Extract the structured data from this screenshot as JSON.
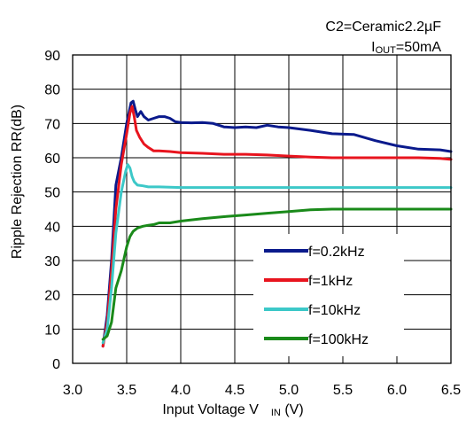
{
  "annotations": {
    "capacitor": "C2=Ceramic2.2µF",
    "iout_main": "I",
    "iout_sub": "OUT",
    "iout_value": "=50mA"
  },
  "chart_data": {
    "type": "line",
    "xlabel_main": "Input Voltage V",
    "xlabel_sub": "IN",
    "xlabel_unit": "(V)",
    "ylabel": "Ripple Rejection RR(dB)",
    "xlim": [
      3.0,
      6.5
    ],
    "ylim": [
      0,
      90
    ],
    "x_ticks": [
      "3.0",
      "3.5",
      "4.0",
      "4.5",
      "5.0",
      "5.5",
      "6.0",
      "6.5"
    ],
    "y_ticks": [
      "0",
      "10",
      "20",
      "30",
      "40",
      "50",
      "60",
      "70",
      "80",
      "90"
    ],
    "grid": true,
    "legend_position": "bottom-right",
    "series": [
      {
        "name": "f=0.2kHz",
        "color": "#0a1a8c",
        "x": [
          3.28,
          3.32,
          3.36,
          3.4,
          3.45,
          3.5,
          3.54,
          3.56,
          3.58,
          3.6,
          3.63,
          3.66,
          3.7,
          3.75,
          3.8,
          3.85,
          3.9,
          3.95,
          4.0,
          4.1,
          4.2,
          4.3,
          4.4,
          4.5,
          4.6,
          4.7,
          4.8,
          4.9,
          5.0,
          5.2,
          5.4,
          5.6,
          5.8,
          6.0,
          6.2,
          6.4,
          6.5
        ],
        "y": [
          5,
          14,
          30,
          52,
          60,
          70,
          76,
          76.5,
          74,
          72,
          73.5,
          72,
          71,
          71.5,
          72,
          72,
          71.5,
          70.5,
          70.3,
          70.2,
          70.3,
          70,
          69,
          68.8,
          69,
          68.8,
          69.5,
          69,
          68.8,
          68,
          67,
          66.8,
          65,
          63.5,
          62.5,
          62.3,
          61.8
        ]
      },
      {
        "name": "f=1kHz",
        "color": "#e8141e",
        "x": [
          3.28,
          3.32,
          3.36,
          3.4,
          3.45,
          3.5,
          3.53,
          3.55,
          3.57,
          3.59,
          3.62,
          3.66,
          3.7,
          3.75,
          3.8,
          3.9,
          4.0,
          4.2,
          4.4,
          4.6,
          4.8,
          5.0,
          5.2,
          5.4,
          5.6,
          5.8,
          6.0,
          6.2,
          6.4,
          6.5
        ],
        "y": [
          5,
          12,
          27,
          45,
          58,
          67,
          73,
          75,
          72,
          68,
          66,
          64,
          63,
          62,
          62,
          61.8,
          61.5,
          61.3,
          61,
          61,
          60.8,
          60.5,
          60.2,
          60,
          60,
          60,
          60,
          60,
          59.8,
          59.5
        ]
      },
      {
        "name": "f=10kHz",
        "color": "#3cc8c8",
        "x": [
          3.28,
          3.32,
          3.36,
          3.4,
          3.45,
          3.49,
          3.51,
          3.53,
          3.55,
          3.57,
          3.6,
          3.65,
          3.7,
          3.8,
          4.0,
          4.2,
          4.5,
          5.0,
          5.5,
          6.0,
          6.5
        ],
        "y": [
          6,
          10,
          22,
          38,
          50,
          56,
          58,
          57,
          54.5,
          53,
          52,
          51.8,
          51.5,
          51.5,
          51.3,
          51.3,
          51.3,
          51.3,
          51.3,
          51.3,
          51.3
        ]
      },
      {
        "name": "f=100kHz",
        "color": "#1a8a1a",
        "x": [
          3.28,
          3.32,
          3.36,
          3.4,
          3.45,
          3.5,
          3.53,
          3.56,
          3.6,
          3.65,
          3.7,
          3.75,
          3.8,
          3.9,
          4.0,
          4.2,
          4.4,
          4.6,
          4.8,
          5.0,
          5.2,
          5.4,
          5.6,
          5.8,
          6.0,
          6.2,
          6.4,
          6.5
        ],
        "y": [
          7,
          8,
          12,
          22,
          27,
          34,
          37,
          38.5,
          39.5,
          40,
          40.3,
          40.5,
          41,
          41,
          41.5,
          42.2,
          42.8,
          43.3,
          43.8,
          44.3,
          44.8,
          45,
          45,
          45,
          45,
          45,
          45,
          45
        ]
      }
    ]
  }
}
